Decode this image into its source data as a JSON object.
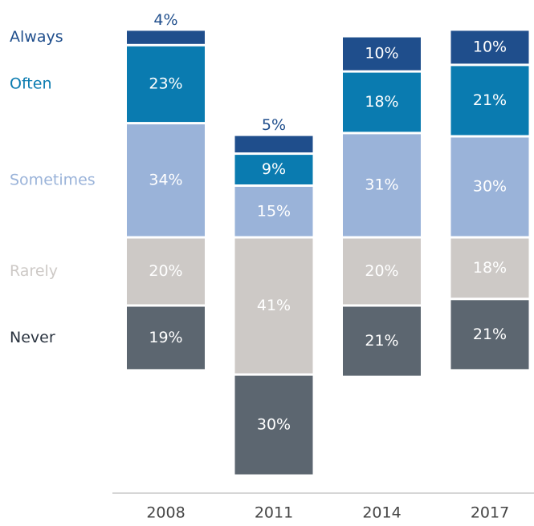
{
  "chart_data": {
    "type": "bar",
    "stacked": true,
    "diverging": true,
    "categories": [
      "2008",
      "2011",
      "2014",
      "2017"
    ],
    "series": [
      {
        "name": "Always",
        "color": "#1f4e8c",
        "values": [
          4,
          5,
          10,
          10
        ],
        "value_labels": [
          "4%",
          "5%",
          "10%",
          "10%"
        ]
      },
      {
        "name": "Often",
        "color": "#0a7bb0",
        "values": [
          23,
          9,
          18,
          21
        ],
        "value_labels": [
          "23%",
          "9%",
          "18%",
          "21%"
        ]
      },
      {
        "name": "Sometimes",
        "color": "#9ab3d9",
        "values": [
          34,
          15,
          31,
          30
        ],
        "value_labels": [
          "34%",
          "15%",
          "31%",
          "30%"
        ]
      },
      {
        "name": "Rarely",
        "color": "#cdc9c6",
        "values": [
          20,
          41,
          20,
          18
        ],
        "value_labels": [
          "20%",
          "41%",
          "20%",
          "18%"
        ]
      },
      {
        "name": "Never",
        "color": "#5c6670",
        "values": [
          19,
          30,
          21,
          21
        ],
        "value_labels": [
          "19%",
          "30%",
          "21%",
          "21%"
        ]
      }
    ]
  }
}
